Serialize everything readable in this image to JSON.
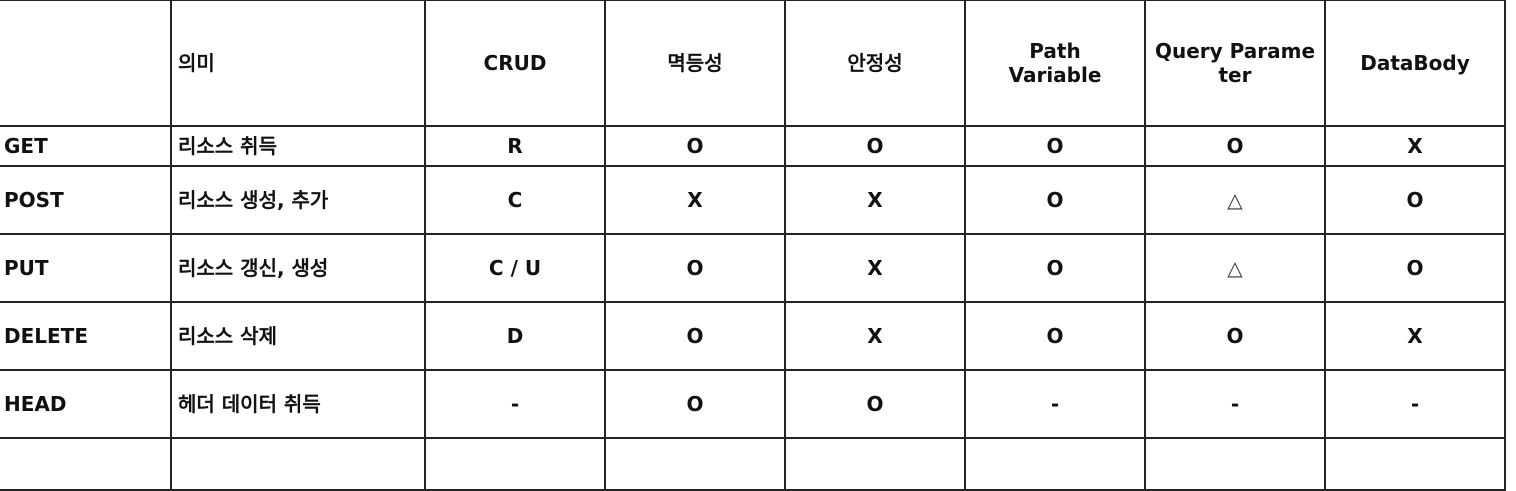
{
  "headers": [
    "",
    "의미",
    "CRUD",
    "멱등성",
    "안정성",
    "Path\nVariable",
    "Query Parame\nter",
    "DataBody"
  ],
  "rows": [
    {
      "method": "GET",
      "meaning": "리소스 취득",
      "crud": "R",
      "idempotent": "O",
      "safe": "O",
      "path_variable": "O",
      "query_parameter": "O",
      "data_body": "X"
    },
    {
      "method": "POST",
      "meaning": "리소스 생성, 추가",
      "crud": "C",
      "idempotent": "X",
      "safe": "X",
      "path_variable": "O",
      "query_parameter": "△",
      "data_body": "O"
    },
    {
      "method": "PUT",
      "meaning": "리소스 갱신, 생성",
      "crud": "C / U",
      "idempotent": "O",
      "safe": "X",
      "path_variable": "O",
      "query_parameter": "△",
      "data_body": "O"
    },
    {
      "method": "DELETE",
      "meaning": "리소스 삭제",
      "crud": "D",
      "idempotent": "O",
      "safe": "X",
      "path_variable": "O",
      "query_parameter": "O",
      "data_body": "X"
    },
    {
      "method": "HEAD",
      "meaning": "헤더 데이터 취득",
      "crud": "-",
      "idempotent": "O",
      "safe": "O",
      "path_variable": "-",
      "query_parameter": "-",
      "data_body": "-"
    }
  ]
}
